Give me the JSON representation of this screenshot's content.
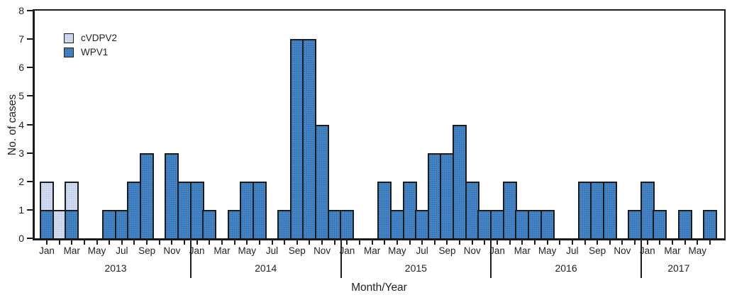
{
  "chart_data": {
    "type": "bar",
    "stacked": true,
    "title": "",
    "xlabel": "Month/Year",
    "ylabel": "No. of cases",
    "ylim": [
      0,
      8
    ],
    "ytick_labels": [
      "0",
      "1",
      "2",
      "3",
      "4",
      "5",
      "6",
      "7",
      "8"
    ],
    "month_names": [
      "Jan",
      "Feb",
      "Mar",
      "Apr",
      "May",
      "Jun",
      "Jul",
      "Aug",
      "Sep",
      "Oct",
      "Nov",
      "Dec"
    ],
    "month_label_every": 2,
    "grid": false,
    "legend_position": "top-left-inside",
    "legend": [
      {
        "label": "cVDPV2",
        "color": "#cfdaef"
      },
      {
        "label": "WPV1",
        "color": "#4383c4"
      }
    ],
    "bar_border_color": "#1c1c1c",
    "years": [
      {
        "label": "2013",
        "months": [
          "Jan",
          "Feb",
          "Mar",
          "Apr",
          "May",
          "Jun",
          "Jul",
          "Aug",
          "Sep",
          "Oct",
          "Nov",
          "Dec"
        ],
        "series": {
          "WPV1": [
            1,
            0,
            1,
            0,
            0,
            1,
            1,
            2,
            3,
            0,
            3,
            2
          ],
          "cVDPV2": [
            1,
            1,
            1,
            0,
            0,
            0,
            0,
            0,
            0,
            0,
            0,
            0
          ]
        }
      },
      {
        "label": "2014",
        "months": [
          "Jan",
          "Feb",
          "Mar",
          "Apr",
          "May",
          "Jun",
          "Jul",
          "Aug",
          "Sep",
          "Oct",
          "Nov",
          "Dec"
        ],
        "series": {
          "WPV1": [
            2,
            1,
            0,
            1,
            2,
            2,
            0,
            1,
            7,
            7,
            4,
            1
          ],
          "cVDPV2": [
            0,
            0,
            0,
            0,
            0,
            0,
            0,
            0,
            0,
            0,
            0,
            0
          ]
        }
      },
      {
        "label": "2015",
        "months": [
          "Jan",
          "Feb",
          "Mar",
          "Apr",
          "May",
          "Jun",
          "Jul",
          "Aug",
          "Sep",
          "Oct",
          "Nov",
          "Dec"
        ],
        "series": {
          "WPV1": [
            1,
            0,
            0,
            2,
            1,
            2,
            1,
            3,
            3,
            4,
            2,
            1
          ],
          "cVDPV2": [
            0,
            0,
            0,
            0,
            0,
            0,
            0,
            0,
            0,
            0,
            0,
            0
          ]
        }
      },
      {
        "label": "2016",
        "months": [
          "Jan",
          "Feb",
          "Mar",
          "Apr",
          "May",
          "Jun",
          "Jul",
          "Aug",
          "Sep",
          "Oct",
          "Nov",
          "Dec"
        ],
        "series": {
          "WPV1": [
            1,
            2,
            1,
            1,
            1,
            0,
            0,
            2,
            2,
            2,
            0,
            1
          ],
          "cVDPV2": [
            0,
            0,
            0,
            0,
            0,
            0,
            0,
            0,
            0,
            0,
            0,
            0
          ]
        }
      },
      {
        "label": "2017",
        "months": [
          "Jan",
          "Feb",
          "Mar",
          "Apr",
          "May",
          "Jun"
        ],
        "series": {
          "WPV1": [
            2,
            1,
            0,
            1,
            0,
            1
          ],
          "cVDPV2": [
            0,
            0,
            0,
            0,
            0,
            0
          ]
        }
      }
    ]
  }
}
